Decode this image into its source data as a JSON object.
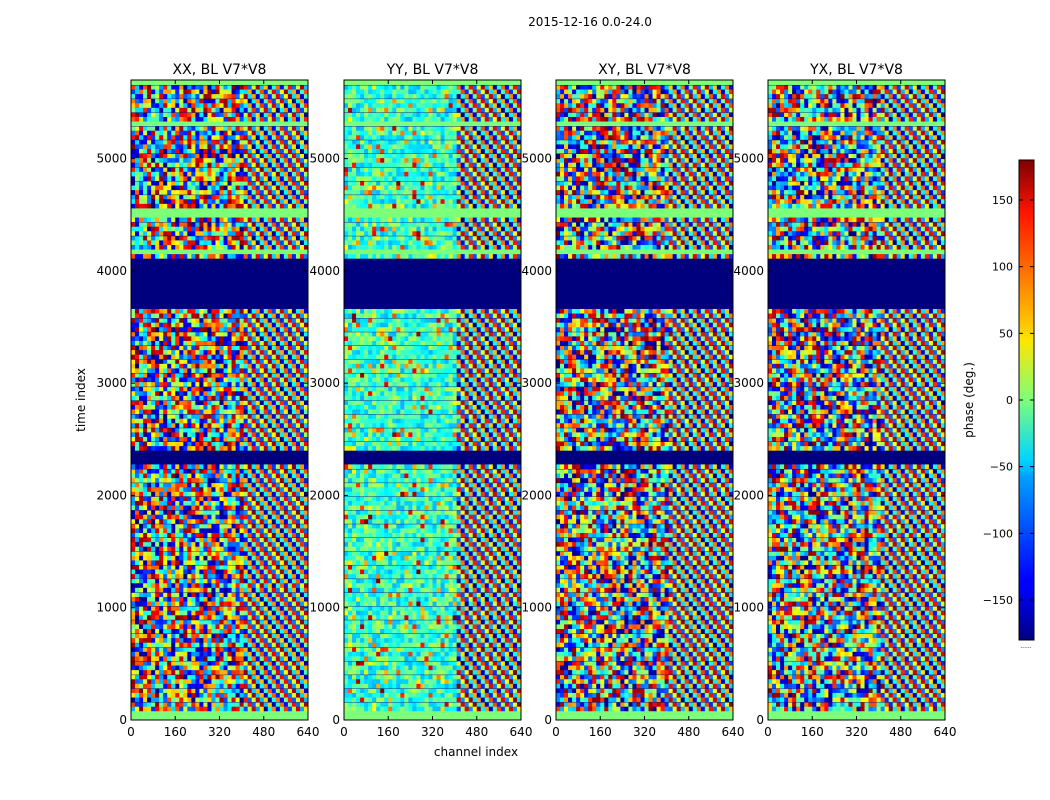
{
  "figure": {
    "suptitle": "2015-12-16 0.0-24.0"
  },
  "chart_data": {
    "type": "heatmap",
    "title": "2015-12-16 0.0-24.0",
    "xlabel": "channel index",
    "ylabel": "time index",
    "xlim": [
      0,
      640
    ],
    "ylim": [
      0,
      5700
    ],
    "xticks": [
      "0",
      "160",
      "320",
      "480",
      "640"
    ],
    "yticks": [
      "0",
      "1000",
      "2000",
      "3000",
      "4000",
      "5000"
    ],
    "panels": [
      {
        "title": "XX, BL V7*V8",
        "polarization": "XX",
        "texture": "noisy-with-fringes"
      },
      {
        "title": "YY, BL V7*V8",
        "polarization": "YY",
        "texture": "cyan-dominant-with-fringes"
      },
      {
        "title": "XY, BL V7*V8",
        "polarization": "XY",
        "texture": "noisy-with-fringes"
      },
      {
        "title": "YX, BL V7*V8",
        "polarization": "YX",
        "texture": "noisy-with-fringes"
      }
    ],
    "fringe_start_channel": 400,
    "blank_time_ranges": [
      [
        0,
        80
      ],
      [
        4150,
        4200
      ],
      [
        4480,
        4540
      ],
      [
        5280,
        5340
      ],
      [
        5660,
        5700
      ]
    ],
    "masked_time_ranges": [
      [
        3680,
        4130
      ],
      [
        2300,
        2410
      ]
    ],
    "colorbar": {
      "label": "phase (deg.)",
      "range": [
        -180,
        180
      ],
      "ticks": [
        "150",
        "100",
        "50",
        "0",
        "−50",
        "−100",
        "−150"
      ],
      "tick_values": [
        150,
        100,
        50,
        0,
        -50,
        -100,
        -150
      ],
      "colormap": "jet",
      "footnote": "......"
    }
  }
}
